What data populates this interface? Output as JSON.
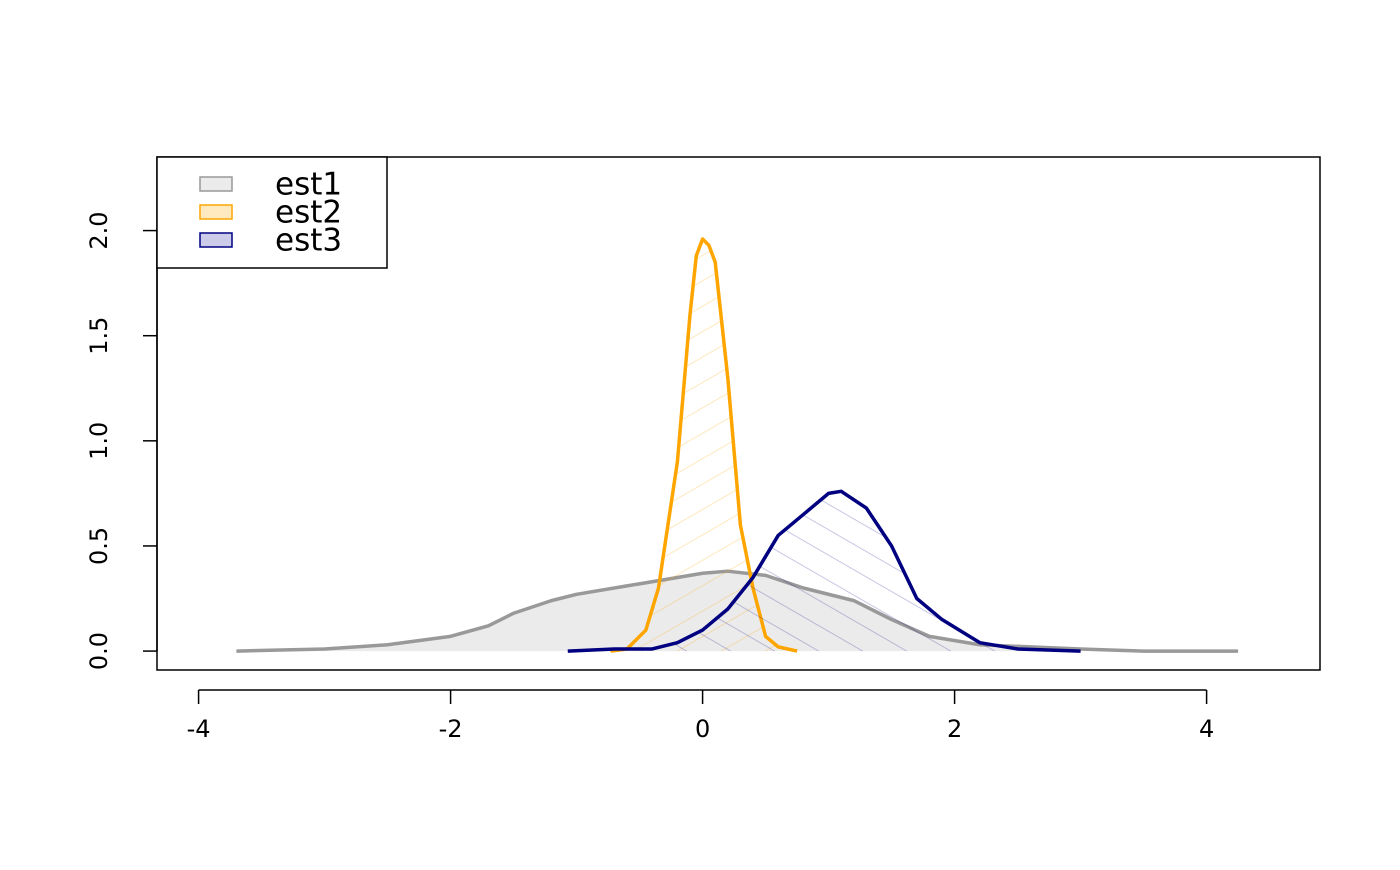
{
  "chart_data": {
    "type": "density",
    "xlim": [
      -4.33,
      4.9
    ],
    "ylim": [
      -0.09,
      2.35
    ],
    "xticks": [
      -4,
      -2,
      0,
      2,
      4
    ],
    "yticks": [
      {
        "value": 0,
        "label": "0.0"
      },
      {
        "value": 0.5,
        "label": "0.5"
      },
      {
        "value": 1,
        "label": "1.0"
      },
      {
        "value": 1.5,
        "label": "1.5"
      },
      {
        "value": 2,
        "label": "2.0"
      }
    ],
    "legend": "topleft",
    "series": [
      {
        "name": "est1",
        "color": "#999999",
        "fill": "#ebebeb",
        "fill_style": "solid",
        "x": [
          -3.7,
          -3,
          -2.5,
          -2,
          -1.7,
          -1.5,
          -1.2,
          -1,
          -0.6,
          -0.3,
          0,
          0.2,
          0.5,
          0.8,
          1.2,
          1.5,
          1.8,
          2.2,
          3,
          3.5,
          4.25
        ],
        "values": [
          0,
          0.01,
          0.03,
          0.07,
          0.12,
          0.18,
          0.24,
          0.27,
          0.31,
          0.34,
          0.37,
          0.38,
          0.36,
          0.3,
          0.24,
          0.15,
          0.07,
          0.03,
          0.01,
          0,
          0
        ]
      },
      {
        "name": "est2",
        "color": "#ffa500",
        "fill": "#ffe9bf",
        "fill_style": "hatch-up",
        "x": [
          -0.73,
          -0.6,
          -0.45,
          -0.35,
          -0.2,
          -0.1,
          -0.05,
          0,
          0.05,
          0.1,
          0.2,
          0.3,
          0.4,
          0.5,
          0.6,
          0.75
        ],
        "values": [
          0,
          0.01,
          0.1,
          0.3,
          0.9,
          1.6,
          1.88,
          1.96,
          1.93,
          1.85,
          1.3,
          0.6,
          0.3,
          0.07,
          0.02,
          0
        ]
      },
      {
        "name": "est3",
        "color": "#000080",
        "fill": "#ccccea",
        "fill_style": "hatch-down",
        "x": [
          -1.07,
          -0.7,
          -0.4,
          -0.2,
          0,
          0.2,
          0.4,
          0.6,
          0.8,
          1,
          1.1,
          1.3,
          1.5,
          1.7,
          1.9,
          2.2,
          2.5,
          3
        ],
        "values": [
          0,
          0.01,
          0.01,
          0.04,
          0.1,
          0.2,
          0.35,
          0.55,
          0.65,
          0.75,
          0.76,
          0.68,
          0.5,
          0.25,
          0.15,
          0.04,
          0.01,
          0
        ]
      }
    ]
  }
}
